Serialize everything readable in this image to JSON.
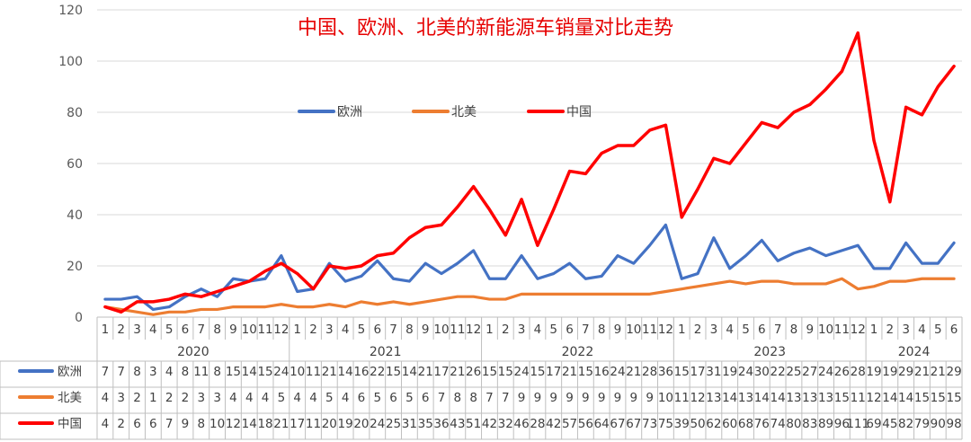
{
  "chart_data": {
    "type": "line",
    "title": "中国、欧洲、北美的新能源车销量对比走势",
    "ylim": [
      0,
      120
    ],
    "yticks": [
      0,
      20,
      40,
      60,
      80,
      100,
      120
    ],
    "months": [
      "1",
      "2",
      "3",
      "4",
      "5",
      "6",
      "7",
      "8",
      "9",
      "10",
      "11",
      "12",
      "1",
      "2",
      "3",
      "4",
      "5",
      "6",
      "7",
      "8",
      "9",
      "10",
      "11",
      "12",
      "1",
      "2",
      "3",
      "4",
      "5",
      "6",
      "7",
      "8",
      "9",
      "10",
      "11",
      "12",
      "1",
      "2",
      "3",
      "4",
      "5",
      "6",
      "7",
      "8",
      "9",
      "10",
      "11",
      "12",
      "1",
      "2",
      "3",
      "4",
      "5",
      "6"
    ],
    "years": [
      {
        "label": "2020",
        "start": 0,
        "count": 12
      },
      {
        "label": "2021",
        "start": 12,
        "count": 12
      },
      {
        "label": "2022",
        "start": 24,
        "count": 12
      },
      {
        "label": "2023",
        "start": 36,
        "count": 12
      },
      {
        "label": "2024",
        "start": 48,
        "count": 6
      }
    ],
    "legend_position": "top-center",
    "grid": true,
    "series": [
      {
        "name": "欧洲",
        "color": "#4472c4",
        "values": [
          7,
          7,
          8,
          3,
          4,
          8,
          11,
          8,
          15,
          14,
          15,
          24,
          10,
          11,
          21,
          14,
          16,
          22,
          15,
          14,
          21,
          17,
          21,
          26,
          15,
          15,
          24,
          15,
          17,
          21,
          15,
          16,
          24,
          21,
          28,
          36,
          15,
          17,
          31,
          19,
          24,
          30,
          22,
          25,
          27,
          24,
          26,
          28,
          19,
          19,
          29,
          21,
          21,
          29
        ]
      },
      {
        "name": "北美",
        "color": "#ed7d31",
        "values": [
          4,
          3,
          2,
          1,
          2,
          2,
          3,
          3,
          4,
          4,
          4,
          5,
          4,
          4,
          5,
          4,
          6,
          5,
          6,
          5,
          6,
          7,
          8,
          8,
          7,
          7,
          9,
          9,
          9,
          9,
          9,
          9,
          9,
          9,
          9,
          10,
          11,
          12,
          13,
          14,
          13,
          14,
          14,
          13,
          13,
          13,
          15,
          11,
          12,
          14,
          14,
          15,
          15,
          15
        ]
      },
      {
        "name": "中国",
        "color": "#ff0000",
        "values": [
          4,
          2,
          6,
          6,
          7,
          9,
          8,
          10,
          12,
          14,
          18,
          21,
          17,
          11,
          20,
          19,
          20,
          24,
          25,
          31,
          35,
          36,
          43,
          51,
          42,
          32,
          46,
          28,
          42,
          57,
          56,
          64,
          67,
          67,
          73,
          75,
          39,
          50,
          62,
          60,
          68,
          76,
          74,
          80,
          83,
          89,
          96,
          111,
          69,
          45,
          82,
          79,
          90,
          98
        ]
      }
    ]
  }
}
